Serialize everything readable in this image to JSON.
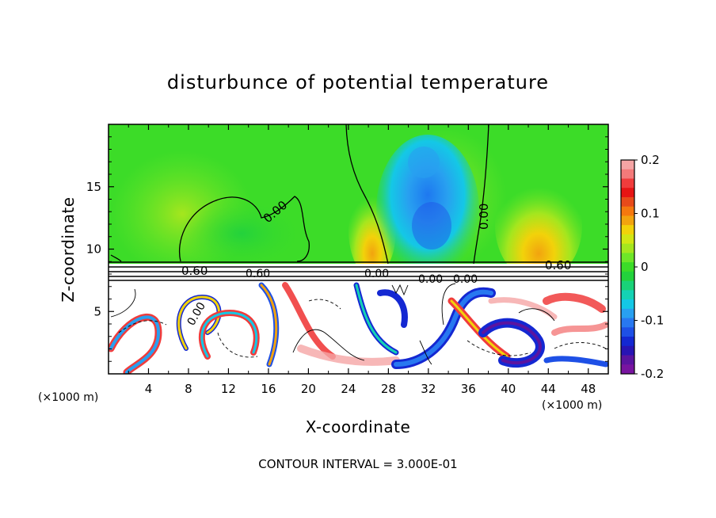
{
  "chart_data": {
    "type": "heatmap",
    "title": "disturbunce of potential temperature",
    "xlabel": "X-coordinate",
    "ylabel": "Z-coordinate",
    "x_unit_left": "(×1000 m)",
    "x_unit_right": "(×1000 m)",
    "xlim": [
      0,
      50
    ],
    "ylim": [
      0,
      20
    ],
    "xticks": [
      4,
      8,
      12,
      16,
      20,
      24,
      28,
      32,
      36,
      40,
      44,
      48
    ],
    "yticks": [
      5,
      10,
      15
    ],
    "colorbar": {
      "range": [
        -0.2,
        0.2
      ],
      "tick_labels": [
        "0.2",
        "0.1",
        "0",
        "-0.1",
        "-0.2"
      ],
      "tick_values": [
        0.2,
        0.1,
        0,
        -0.1,
        -0.2
      ],
      "colors": [
        "#f5a5a5",
        "#f47a7a",
        "#f03c3c",
        "#e61414",
        "#e84a1a",
        "#f5780f",
        "#f2a30f",
        "#f2d20a",
        "#d2e614",
        "#a5e61e",
        "#6ee628",
        "#3cdc28",
        "#23d23c",
        "#19d278",
        "#14d2b4",
        "#14c8e6",
        "#28a0f0",
        "#2878f0",
        "#1e50e6",
        "#1428d2",
        "#2814b4",
        "#5a14a0",
        "#7814a0"
      ]
    },
    "contour_interval": "CONTOUR INTERVAL = 3.000E-01",
    "contour_labels": [
      "0.00",
      "0.00",
      "0.60",
      "0.60",
      "0.00",
      "0.00",
      "0.00",
      "0.60",
      "0.00"
    ]
  }
}
